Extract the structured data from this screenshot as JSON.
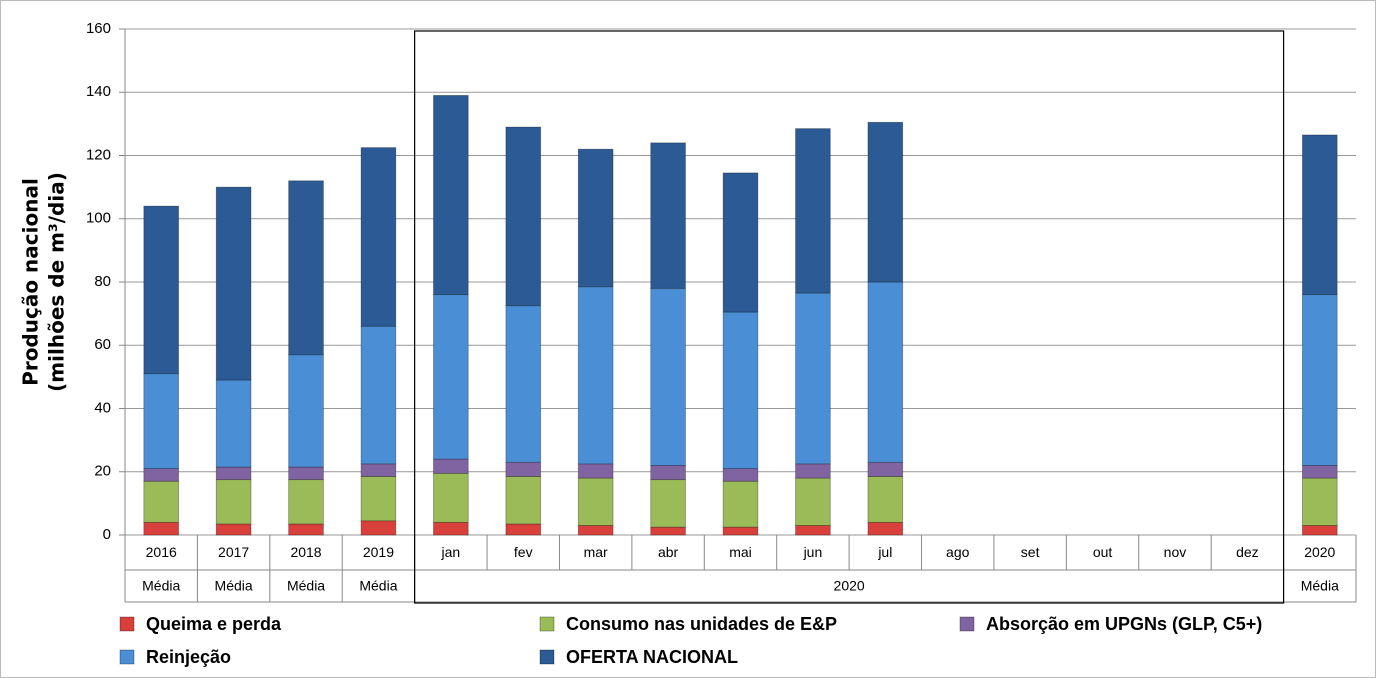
{
  "chart_data": {
    "type": "stacked_bar",
    "ylabel": [
      "Produção nacional",
      "(milhões de m³/dia)"
    ],
    "categories": [
      "2016",
      "2017",
      "2018",
      "2019",
      "jan",
      "fev",
      "mar",
      "abr",
      "mai",
      "jun",
      "jul",
      "ago",
      "set",
      "out",
      "nov",
      "dez",
      "2020"
    ],
    "groups": [
      {
        "label": "Média",
        "categories": [
          "2016"
        ]
      },
      {
        "label": "Média",
        "categories": [
          "2017"
        ]
      },
      {
        "label": "Média",
        "categories": [
          "2018"
        ]
      },
      {
        "label": "Média",
        "categories": [
          "2019"
        ]
      },
      {
        "label": "2020",
        "categories": [
          "jan",
          "fev",
          "mar",
          "abr",
          "mai",
          "jun",
          "jul",
          "ago",
          "set",
          "out",
          "nov",
          "dez"
        ]
      },
      {
        "label": "Média",
        "categories": [
          "2020"
        ]
      }
    ],
    "series": [
      {
        "name": "Queima e perda",
        "color": "#d9403b",
        "values": [
          4,
          3.5,
          3.5,
          4.5,
          4,
          3.5,
          3,
          2.5,
          2.5,
          3,
          4,
          null,
          null,
          null,
          null,
          null,
          3
        ]
      },
      {
        "name": "Consumo nas unidades de E&P",
        "color": "#9bbb59",
        "values": [
          13,
          14,
          14,
          14,
          15.5,
          15,
          15,
          15,
          14.5,
          15,
          14.5,
          null,
          null,
          null,
          null,
          null,
          15
        ]
      },
      {
        "name": "Absorção em UPGNs (GLP, C5+)",
        "color": "#8064a2",
        "values": [
          4,
          4,
          4,
          4,
          4.5,
          4.5,
          4.5,
          4.5,
          4,
          4.5,
          4.5,
          null,
          null,
          null,
          null,
          null,
          4
        ]
      },
      {
        "name": "Reinjeção",
        "color": "#4a8fd6",
        "values": [
          30,
          27.5,
          35.5,
          43.5,
          52,
          49.5,
          56,
          56,
          49.5,
          54,
          57,
          null,
          null,
          null,
          null,
          null,
          54
        ]
      },
      {
        "name": "OFERTA NACIONAL",
        "color": "#2b5a94",
        "values": [
          53,
          61,
          55,
          56.5,
          63,
          56.5,
          43.5,
          46,
          44,
          52,
          50.5,
          null,
          null,
          null,
          null,
          null,
          50.5
        ]
      }
    ],
    "ylim": [
      0,
      160
    ],
    "yticks": [
      0,
      20,
      40,
      60,
      80,
      100,
      120,
      140,
      160
    ],
    "grid": true
  }
}
